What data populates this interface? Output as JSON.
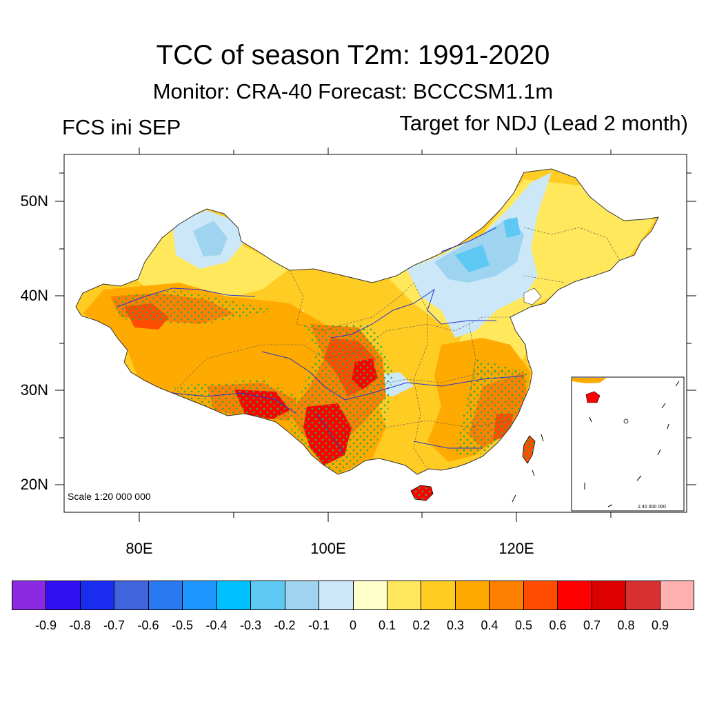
{
  "title": "TCC of season T2m: 1991-2020",
  "subtitle": "Monitor: CRA-40   Forecast: BCCCSM1.1m",
  "left_label": "FCS ini SEP",
  "right_label": "Target for NDJ (Lead 2 month)",
  "map": {
    "y_ticks": [
      "50N",
      "40N",
      "30N",
      "20N"
    ],
    "x_ticks": [
      "80E",
      "100E",
      "120E"
    ],
    "scale_label": "Scale 1:20 000 000",
    "inset_scale_label": "1:40 000 000",
    "stippling_color": "#22b14c"
  },
  "colorbar": {
    "colors": [
      "#8a2be2",
      "#3010f0",
      "#1a2cf0",
      "#3f64dc",
      "#2a78f0",
      "#1e96ff",
      "#00c0ff",
      "#5ec8f5",
      "#9fd4f0",
      "#cce8f8",
      "#ffffcc",
      "#ffe85c",
      "#ffcc24",
      "#ffaa00",
      "#ff8000",
      "#ff4c00",
      "#ff0000",
      "#dc0000",
      "#d83030",
      "#ffb0b0"
    ],
    "labels": [
      "-0.9",
      "-0.8",
      "-0.7",
      "-0.6",
      "-0.5",
      "-0.4",
      "-0.3",
      "-0.2",
      "-0.1",
      "0",
      "0.1",
      "0.2",
      "0.3",
      "0.4",
      "0.5",
      "0.6",
      "0.7",
      "0.8",
      "0.9"
    ]
  }
}
